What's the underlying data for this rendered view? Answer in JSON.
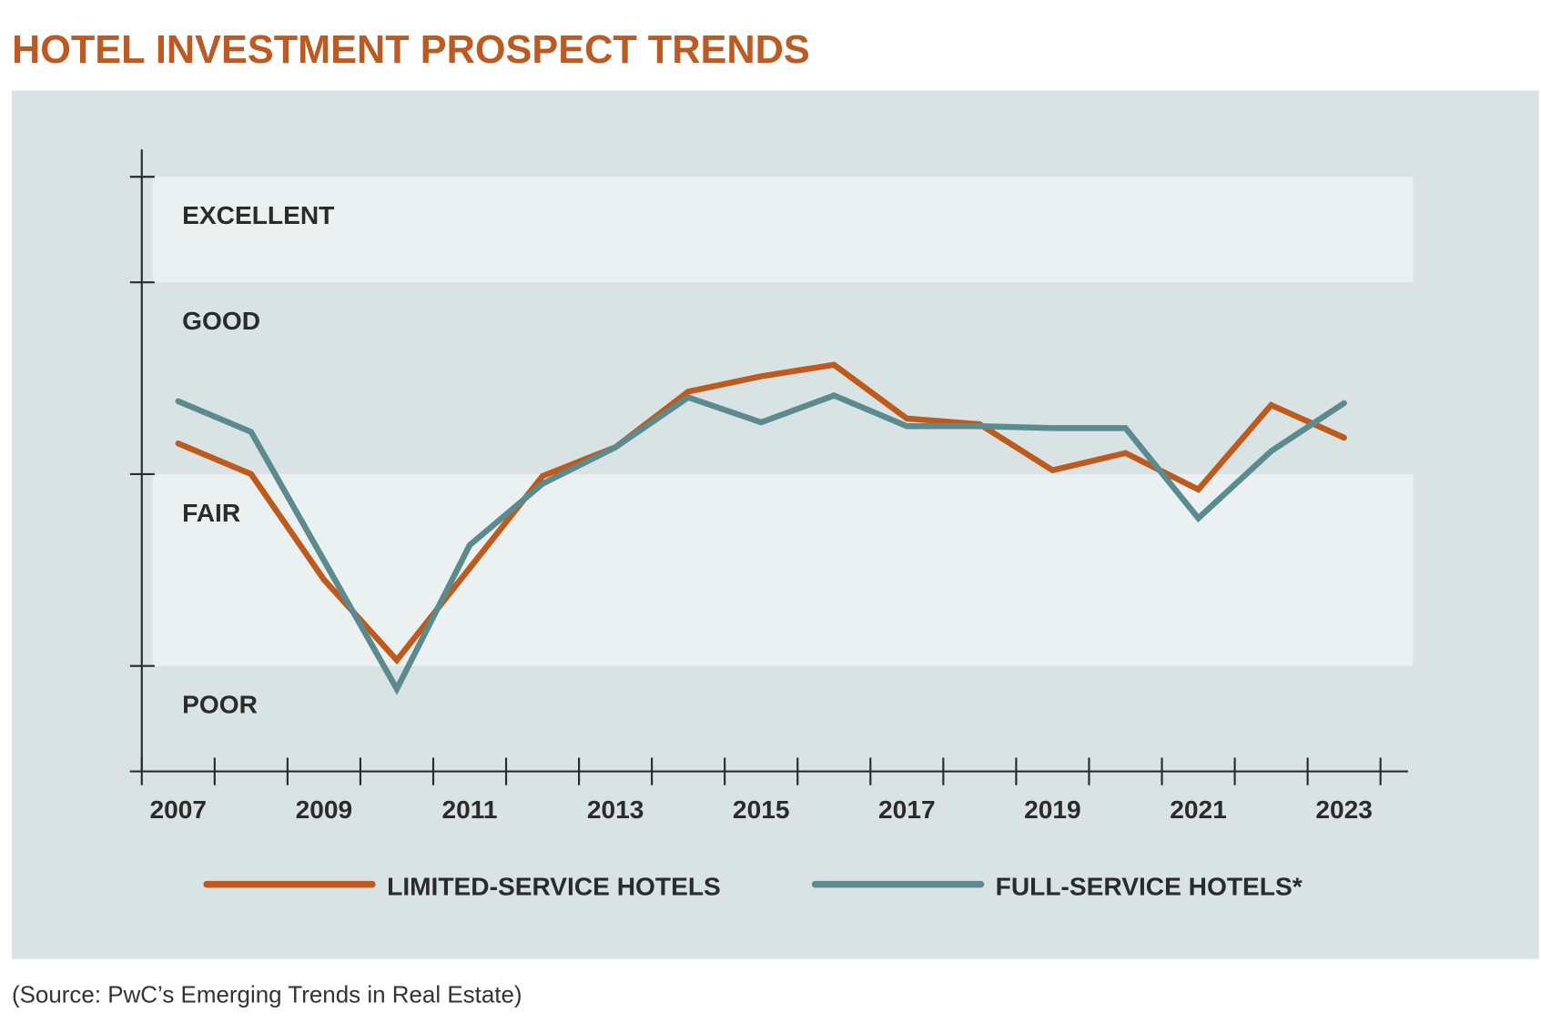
{
  "chart_data": {
    "type": "line",
    "title": "HOTEL INVESTMENT PROSPECT TRENDS",
    "source": "(Source: PwC’s Emerging Trends in Real Estate)",
    "xlabel": "",
    "ylabel": "",
    "x": [
      2007,
      2008,
      2009,
      2010,
      2011,
      2012,
      2013,
      2014,
      2015,
      2016,
      2017,
      2018,
      2019,
      2020,
      2021,
      2022,
      2023
    ],
    "x_tick_labels": [
      "2007",
      "2009",
      "2011",
      "2013",
      "2015",
      "2017",
      "2019",
      "2021",
      "2023"
    ],
    "y_bands": [
      {
        "label": "EXCELLENT",
        "range": [
          4,
          4.55
        ]
      },
      {
        "label": "GOOD",
        "range": [
          3,
          4
        ]
      },
      {
        "label": "FAIR",
        "range": [
          2,
          3
        ]
      },
      {
        "label": "POOR",
        "range": [
          1.45,
          2
        ]
      }
    ],
    "ylim": [
      1.45,
      4.55
    ],
    "grid": false,
    "legend_position": "bottom",
    "series": [
      {
        "name": "LIMITED-SERVICE HOTELS",
        "color": "#bf5a1f",
        "values": [
          3.16,
          3.0,
          2.45,
          2.03,
          2.51,
          2.99,
          3.14,
          3.43,
          3.51,
          3.57,
          3.29,
          3.26,
          3.02,
          3.11,
          2.92,
          3.36,
          3.19
        ]
      },
      {
        "name": "FULL-SERVICE HOTELS*",
        "color": "#5b8b8e",
        "values": [
          3.38,
          3.22,
          2.55,
          1.88,
          2.63,
          2.95,
          3.14,
          3.4,
          3.27,
          3.41,
          3.25,
          3.25,
          3.24,
          3.24,
          2.77,
          3.12,
          3.37
        ]
      }
    ]
  },
  "colors": {
    "panel": "#dae3e3",
    "band_light": "#ebf0f0",
    "axis": "#2b2b2b"
  }
}
